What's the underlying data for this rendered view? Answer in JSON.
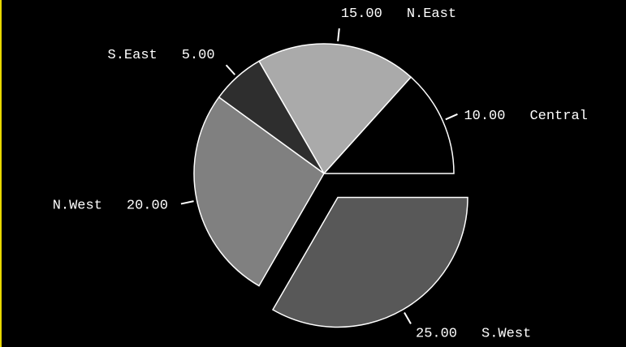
{
  "chart_data": {
    "type": "pie",
    "slices": [
      {
        "label": "Central",
        "value": 10.0,
        "value_text": "10.00",
        "color": "#000000",
        "exploded": false
      },
      {
        "label": "N.East",
        "value": 15.0,
        "value_text": "15.00",
        "color": "#aaaaaa",
        "exploded": false
      },
      {
        "label": "S.East",
        "value": 5.0,
        "value_text": "5.00",
        "color": "#2e2e2e",
        "exploded": false
      },
      {
        "label": "N.West",
        "value": 20.0,
        "value_text": "20.00",
        "color": "#808080",
        "exploded": false
      },
      {
        "label": "S.West",
        "value": 25.0,
        "value_text": "25.00",
        "color": "#585858",
        "exploded": true
      }
    ],
    "slice_outline_color": "#ffffff",
    "label_color": "#ffffff",
    "background": "#000000",
    "frame_accent_color": "#e8d800"
  }
}
